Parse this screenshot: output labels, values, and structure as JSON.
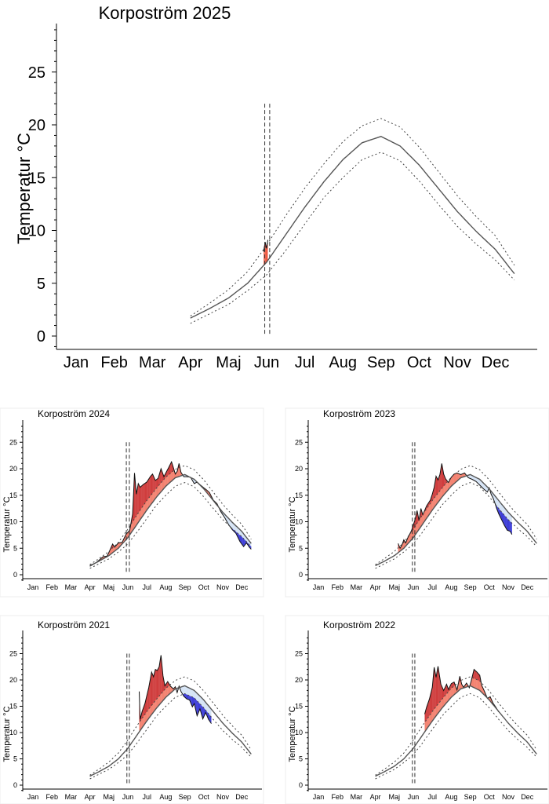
{
  "colors": {
    "mean_line": "#555555",
    "band_line": "#444444",
    "warm_light": "#f7a68f",
    "warm_mid": "#ef5a43",
    "warm_dark": "#c00000",
    "cold_light": "#c9dcf2",
    "cold_dark": "#0000cc"
  },
  "chart_data": [
    {
      "id": "main",
      "type": "area",
      "title": "Korpoström 2025",
      "ylabel": "Temperatur °C",
      "xlabel": "",
      "x_ticks": [
        "Jan",
        "Feb",
        "Mar",
        "Apr",
        "Maj",
        "Jun",
        "Jul",
        "Aug",
        "Sep",
        "Oct",
        "Nov",
        "Dec"
      ],
      "y_ticks": [
        0,
        5,
        10,
        15,
        20,
        25
      ],
      "ylim": [
        -1,
        29
      ],
      "grid": false,
      "mean": [
        [
          3.5,
          1.7
        ],
        [
          4,
          2.6
        ],
        [
          4.5,
          3.6
        ],
        [
          5,
          5.0
        ],
        [
          5.5,
          7.0
        ],
        [
          6,
          9.6
        ],
        [
          6.5,
          12.2
        ],
        [
          7,
          14.6
        ],
        [
          7.5,
          16.7
        ],
        [
          8,
          18.3
        ],
        [
          8.5,
          18.9
        ],
        [
          9,
          18.0
        ],
        [
          9.5,
          16.2
        ],
        [
          10,
          14.0
        ],
        [
          10.5,
          11.8
        ],
        [
          11,
          9.9
        ],
        [
          11.5,
          8.2
        ],
        [
          12,
          5.9
        ]
      ],
      "upper": [
        [
          3.5,
          1.9
        ],
        [
          4,
          3.1
        ],
        [
          4.5,
          4.4
        ],
        [
          5,
          6.1
        ],
        [
          5.5,
          8.6
        ],
        [
          6,
          11.4
        ],
        [
          6.5,
          14.0
        ],
        [
          7,
          16.3
        ],
        [
          7.5,
          18.4
        ],
        [
          8,
          19.9
        ],
        [
          8.5,
          20.6
        ],
        [
          9,
          19.8
        ],
        [
          9.5,
          17.9
        ],
        [
          10,
          15.6
        ],
        [
          10.5,
          13.3
        ],
        [
          11,
          11.3
        ],
        [
          11.5,
          9.5
        ],
        [
          12,
          6.7
        ]
      ],
      "lower": [
        [
          3.5,
          1.2
        ],
        [
          4,
          2.1
        ],
        [
          4.5,
          3.0
        ],
        [
          5,
          4.3
        ],
        [
          5.5,
          5.8
        ],
        [
          6,
          8.1
        ],
        [
          6.5,
          10.6
        ],
        [
          7,
          13.1
        ],
        [
          7.5,
          15.0
        ],
        [
          8,
          16.7
        ],
        [
          8.5,
          17.4
        ],
        [
          9,
          16.6
        ],
        [
          9.5,
          14.7
        ],
        [
          10,
          12.5
        ],
        [
          10.5,
          10.4
        ],
        [
          11,
          8.7
        ],
        [
          11.5,
          7.2
        ],
        [
          12,
          5.3
        ]
      ],
      "observed": [
        [
          5.42,
          8.0
        ],
        [
          5.46,
          8.9
        ],
        [
          5.5,
          8.3
        ],
        [
          5.53,
          9.1
        ]
      ],
      "period_markers": [
        5.45,
        5.58
      ]
    },
    {
      "id": "y2024",
      "type": "area",
      "title": "Korpoström 2024",
      "ylabel": "Temperatur °C",
      "xlabel": "",
      "x_ticks": [
        "Jan",
        "Feb",
        "Mar",
        "Apr",
        "Maj",
        "Jun",
        "Jul",
        "Aug",
        "Sep",
        "Oct",
        "Nov",
        "Dec"
      ],
      "y_ticks": [
        0,
        5,
        10,
        15,
        20,
        25
      ],
      "ylim": [
        -1,
        28
      ],
      "grid": false,
      "observed": [
        [
          3.5,
          1.6
        ],
        [
          3.8,
          2.2
        ],
        [
          4.0,
          2.8
        ],
        [
          4.2,
          3.4
        ],
        [
          4.4,
          3.5
        ],
        [
          4.5,
          4.2
        ],
        [
          4.7,
          5.8
        ],
        [
          4.8,
          5.2
        ],
        [
          5.0,
          6.0
        ],
        [
          5.2,
          6.1
        ],
        [
          5.4,
          7.6
        ],
        [
          5.6,
          8.4
        ],
        [
          5.75,
          11.5
        ],
        [
          5.85,
          19.2
        ],
        [
          5.95,
          15.2
        ],
        [
          6.05,
          17.2
        ],
        [
          6.15,
          16.5
        ],
        [
          6.3,
          17.0
        ],
        [
          6.5,
          17.5
        ],
        [
          6.7,
          18.6
        ],
        [
          6.8,
          19.0
        ],
        [
          6.95,
          17.8
        ],
        [
          7.1,
          18.2
        ],
        [
          7.25,
          20.0
        ],
        [
          7.4,
          18.5
        ],
        [
          7.5,
          19.2
        ],
        [
          7.65,
          20.2
        ],
        [
          7.8,
          21.3
        ],
        [
          7.9,
          20.2
        ],
        [
          8.0,
          19.0
        ],
        [
          8.1,
          19.5
        ],
        [
          8.2,
          21.0
        ],
        [
          8.3,
          19.3
        ],
        [
          8.45,
          18.5
        ],
        [
          8.6,
          18.5
        ],
        [
          8.8,
          18.4
        ],
        [
          9.0,
          17.2
        ],
        [
          9.15,
          17.5
        ],
        [
          9.3,
          17.0
        ],
        [
          9.5,
          16.4
        ],
        [
          9.65,
          16.0
        ],
        [
          9.8,
          15.5
        ],
        [
          10.0,
          14.1
        ],
        [
          10.2,
          13.4
        ],
        [
          10.4,
          11.9
        ],
        [
          10.6,
          10.8
        ],
        [
          10.8,
          9.5
        ],
        [
          11.0,
          8.5
        ],
        [
          11.2,
          7.8
        ],
        [
          11.4,
          6.3
        ],
        [
          11.6,
          5.3
        ],
        [
          11.75,
          6.0
        ],
        [
          11.9,
          5.2
        ],
        [
          12.0,
          4.8
        ]
      ],
      "period_markers": [
        5.42,
        5.58
      ]
    },
    {
      "id": "y2023",
      "type": "area",
      "title": "Korpoström 2023",
      "ylabel": "Temperatur °C",
      "xlabel": "",
      "x_ticks": [
        "Jan",
        "Feb",
        "Mar",
        "Apr",
        "Maj",
        "Jun",
        "Jul",
        "Aug",
        "Sep",
        "Oct",
        "Nov",
        "Dec"
      ],
      "y_ticks": [
        0,
        5,
        10,
        15,
        20,
        25
      ],
      "ylim": [
        -1,
        28
      ],
      "grid": false,
      "observed": [
        [
          4.7,
          5.9
        ],
        [
          4.8,
          5.0
        ],
        [
          4.9,
          5.6
        ],
        [
          5.0,
          6.6
        ],
        [
          5.1,
          6.0
        ],
        [
          5.2,
          6.9
        ],
        [
          5.4,
          8.3
        ],
        [
          5.6,
          10.5
        ],
        [
          5.7,
          12.1
        ],
        [
          5.8,
          10.2
        ],
        [
          5.9,
          12.5
        ],
        [
          6.0,
          11.3
        ],
        [
          6.2,
          13.0
        ],
        [
          6.4,
          14.1
        ],
        [
          6.5,
          15.2
        ],
        [
          6.6,
          16.5
        ],
        [
          6.7,
          18.6
        ],
        [
          6.8,
          17.9
        ],
        [
          6.9,
          18.9
        ],
        [
          7.0,
          21.0
        ],
        [
          7.1,
          19.0
        ],
        [
          7.2,
          18.1
        ],
        [
          7.35,
          17.4
        ],
        [
          7.5,
          18.4
        ],
        [
          7.65,
          19.0
        ],
        [
          7.8,
          19.2
        ],
        [
          8.0,
          18.9
        ],
        [
          8.2,
          19.2
        ],
        [
          8.4,
          18.3
        ],
        [
          8.6,
          18.0
        ],
        [
          8.8,
          17.6
        ],
        [
          9.0,
          16.9
        ],
        [
          9.2,
          16.2
        ],
        [
          9.4,
          15.6
        ],
        [
          9.5,
          16.4
        ],
        [
          9.6,
          15.2
        ],
        [
          9.7,
          14.5
        ],
        [
          9.8,
          13.5
        ],
        [
          9.9,
          12.4
        ],
        [
          10.0,
          11.5
        ],
        [
          10.15,
          10.4
        ],
        [
          10.3,
          9.3
        ],
        [
          10.45,
          8.4
        ],
        [
          10.6,
          8.2
        ],
        [
          10.7,
          7.6
        ]
      ],
      "period_markers": [
        5.45,
        5.58
      ]
    },
    {
      "id": "y2021",
      "type": "area",
      "title": "Korpoström 2021",
      "ylabel": "Temperatur °C",
      "xlabel": "",
      "x_ticks": [
        "Jan",
        "Feb",
        "Mar",
        "Apr",
        "Maj",
        "Jun",
        "Jul",
        "Aug",
        "Sep",
        "Oct",
        "Nov",
        "Dec"
      ],
      "y_ticks": [
        0,
        5,
        10,
        15,
        20,
        25
      ],
      "ylim": [
        -1,
        28
      ],
      "grid": false,
      "observed": [
        [
          6.1,
          17.8
        ],
        [
          6.15,
          12.5
        ],
        [
          6.25,
          14.0
        ],
        [
          6.4,
          15.5
        ],
        [
          6.6,
          18.5
        ],
        [
          6.75,
          21.5
        ],
        [
          6.85,
          20.6
        ],
        [
          6.95,
          22.0
        ],
        [
          7.05,
          21.8
        ],
        [
          7.15,
          22.5
        ],
        [
          7.25,
          24.7
        ],
        [
          7.35,
          20.8
        ],
        [
          7.45,
          18.9
        ],
        [
          7.6,
          19.7
        ],
        [
          7.75,
          18.8
        ],
        [
          7.9,
          18.3
        ],
        [
          8.0,
          18.7
        ],
        [
          8.1,
          17.6
        ],
        [
          8.2,
          18.8
        ],
        [
          8.3,
          17.8
        ],
        [
          8.45,
          16.9
        ],
        [
          8.6,
          16.4
        ],
        [
          8.75,
          16.2
        ],
        [
          8.9,
          14.9
        ],
        [
          9.0,
          15.5
        ],
        [
          9.15,
          13.2
        ],
        [
          9.3,
          14.5
        ],
        [
          9.45,
          12.6
        ],
        [
          9.6,
          13.8
        ],
        [
          9.75,
          12.5
        ],
        [
          9.9,
          11.7
        ]
      ],
      "period_markers": [
        5.45,
        5.58
      ]
    },
    {
      "id": "y2022",
      "type": "area",
      "title": "Korpoström 2022",
      "ylabel": "Temperatur °C",
      "xlabel": "",
      "x_ticks": [
        "Jan",
        "Feb",
        "Mar",
        "Apr",
        "Maj",
        "Jun",
        "Jul",
        "Aug",
        "Sep",
        "Oct",
        "Nov",
        "Dec"
      ],
      "y_ticks": [
        0,
        5,
        10,
        15,
        20,
        25
      ],
      "ylim": [
        -1,
        28
      ],
      "grid": false,
      "observed": [
        [
          6.1,
          13.5
        ],
        [
          6.2,
          14.8
        ],
        [
          6.35,
          16.4
        ],
        [
          6.5,
          18.6
        ],
        [
          6.6,
          22.4
        ],
        [
          6.7,
          20.5
        ],
        [
          6.8,
          22.6
        ],
        [
          6.95,
          19.2
        ],
        [
          7.1,
          18.0
        ],
        [
          7.25,
          19.2
        ],
        [
          7.35,
          18.2
        ],
        [
          7.5,
          19.3
        ],
        [
          7.65,
          19.6
        ],
        [
          7.8,
          18.1
        ],
        [
          7.95,
          20.7
        ],
        [
          8.05,
          19.2
        ],
        [
          8.15,
          18.6
        ],
        [
          8.3,
          19.4
        ],
        [
          8.45,
          18.5
        ],
        [
          8.55,
          19.8
        ],
        [
          8.7,
          22.0
        ],
        [
          8.85,
          21.5
        ],
        [
          9.0,
          20.9
        ],
        [
          9.1,
          19.0
        ],
        [
          9.25,
          17.8
        ],
        [
          9.4,
          16.5
        ],
        [
          9.55,
          16.8
        ],
        [
          9.7,
          15.6
        ],
        [
          9.85,
          14.8
        ],
        [
          10.0,
          13.9
        ]
      ],
      "period_markers": [
        5.45,
        5.58
      ]
    }
  ]
}
